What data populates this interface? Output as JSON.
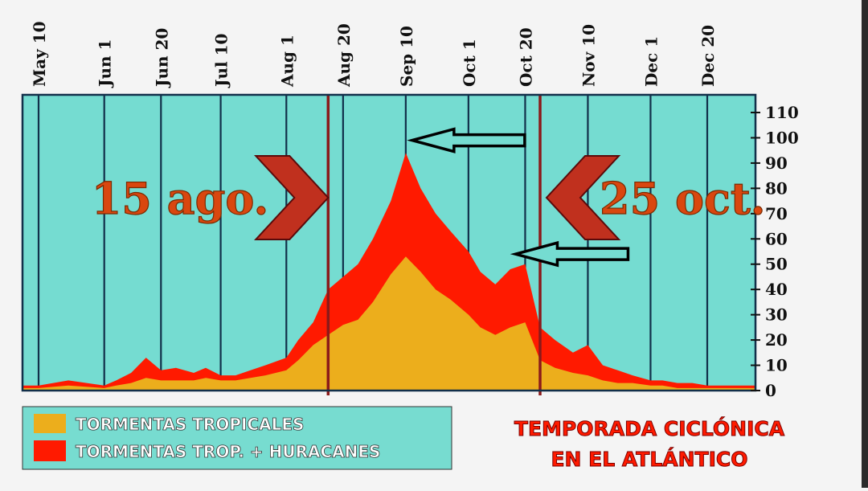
{
  "chart_data": {
    "type": "area",
    "title_lines": [
      "TEMPORADA CICLÓNICA",
      "EN EL ATLÁNTICO"
    ],
    "x_tick_labels": [
      "May 10",
      "Jun 1",
      "Jun 20",
      "Jul 10",
      "Aug 1",
      "Aug 20",
      "Sep 10",
      "Oct 1",
      "Oct 20",
      "Nov 10",
      "Dec 1",
      "Dec 20"
    ],
    "y_ticks": [
      0,
      10,
      20,
      30,
      40,
      50,
      60,
      70,
      80,
      90,
      100,
      110
    ],
    "ylim": [
      0,
      117
    ],
    "grid": "vertical",
    "colors": {
      "plot_bg": "#75dcd1",
      "tropical": "#ecae1c",
      "hurricanes": "#ff1a00",
      "marker": "#8b1a1a",
      "annotation": "#d9470f"
    },
    "legend_position": "bottom-left",
    "legend": [
      {
        "label": "TORMENTAS TROPICALES",
        "color": "#ecae1c"
      },
      {
        "label": "TORMENTAS TROP. + HURACANES",
        "color": "#ff1a00"
      }
    ],
    "x": [
      "May 3",
      "May 10",
      "May 20",
      "Jun 1",
      "Jun 5",
      "Jun 10",
      "Jun 15",
      "Jun 20",
      "Jun 25",
      "Jul 1",
      "Jul 5",
      "Jul 10",
      "Jul 15",
      "Jul 20",
      "Jul 25",
      "Aug 1",
      "Aug 5",
      "Aug 10",
      "Aug 15",
      "Aug 20",
      "Aug 25",
      "Aug 30",
      "Sep 5",
      "Sep 10",
      "Sep 15",
      "Sep 20",
      "Sep 25",
      "Oct 1",
      "Oct 5",
      "Oct 10",
      "Oct 15",
      "Oct 20",
      "Oct 25",
      "Oct 30",
      "Nov 5",
      "Nov 10",
      "Nov 15",
      "Nov 20",
      "Nov 25",
      "Dec 1",
      "Dec 5",
      "Dec 10",
      "Dec 15",
      "Dec 20",
      "Dec 25",
      "Dec 31"
    ],
    "series": [
      {
        "name": "TORMENTAS TROP. + HURACANES",
        "values": [
          2,
          2,
          4,
          2,
          4,
          7,
          13,
          8,
          9,
          7,
          9,
          6,
          6,
          8,
          10,
          13,
          20,
          27,
          40,
          45,
          50,
          60,
          75,
          94,
          80,
          70,
          63,
          55,
          47,
          42,
          48,
          50,
          25,
          20,
          15,
          18,
          10,
          8,
          6,
          4,
          4,
          3,
          3,
          2,
          2,
          2
        ]
      },
      {
        "name": "TORMENTAS TROPICALES",
        "values": [
          1,
          1,
          2,
          1,
          2,
          3,
          5,
          4,
          4,
          4,
          5,
          4,
          4,
          5,
          6,
          8,
          12,
          18,
          22,
          26,
          28,
          35,
          46,
          53,
          47,
          40,
          36,
          30,
          25,
          22,
          25,
          27,
          12,
          9,
          7,
          6,
          4,
          3,
          3,
          2,
          2,
          1,
          1,
          1,
          1,
          1
        ]
      }
    ],
    "annotations": [
      {
        "text": "15 ago.",
        "x": "Aug 15"
      },
      {
        "text": "25 oct.",
        "x": "Oct 25"
      }
    ],
    "arrows": [
      {
        "points_to": "Sep 10",
        "y": 99
      },
      {
        "points_to": "Oct 20",
        "y": 54
      }
    ]
  }
}
